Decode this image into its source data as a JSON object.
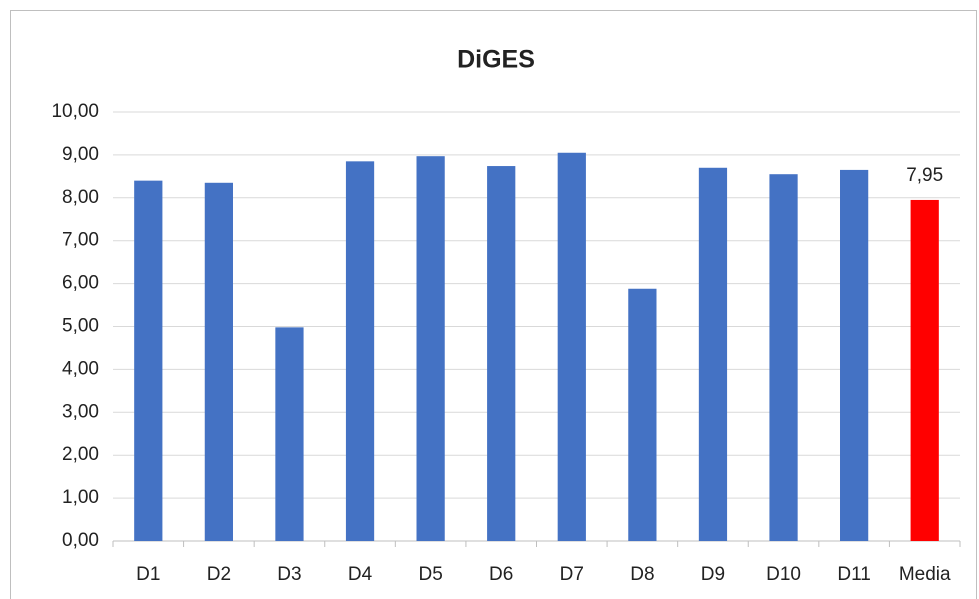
{
  "chart_data": {
    "type": "bar",
    "title": "DiGES",
    "categories": [
      "D1",
      "D2",
      "D3",
      "D4",
      "D5",
      "D6",
      "D7",
      "D8",
      "D9",
      "D10",
      "D11",
      "Media"
    ],
    "values": [
      8.4,
      8.35,
      4.98,
      8.85,
      8.97,
      8.74,
      9.05,
      5.88,
      8.7,
      8.55,
      8.65,
      7.95
    ],
    "value_labels": [
      null,
      null,
      null,
      null,
      null,
      null,
      null,
      null,
      null,
      null,
      null,
      "7,95"
    ],
    "colors": [
      "#4472c4",
      "#4472c4",
      "#4472c4",
      "#4472c4",
      "#4472c4",
      "#4472c4",
      "#4472c4",
      "#4472c4",
      "#4472c4",
      "#4472c4",
      "#4472c4",
      "#ff0000"
    ],
    "ylim": [
      0,
      10
    ],
    "yticks": [
      {
        "value": 0,
        "label": "0,00"
      },
      {
        "value": 1,
        "label": "1,00"
      },
      {
        "value": 2,
        "label": "2,00"
      },
      {
        "value": 3,
        "label": "3,00"
      },
      {
        "value": 4,
        "label": "4,00"
      },
      {
        "value": 5,
        "label": "5,00"
      },
      {
        "value": 6,
        "label": "6,00"
      },
      {
        "value": 7,
        "label": "7,00"
      },
      {
        "value": 8,
        "label": "8,00"
      },
      {
        "value": 9,
        "label": "9,00"
      },
      {
        "value": 10,
        "label": "10,00"
      }
    ],
    "grid": true
  }
}
